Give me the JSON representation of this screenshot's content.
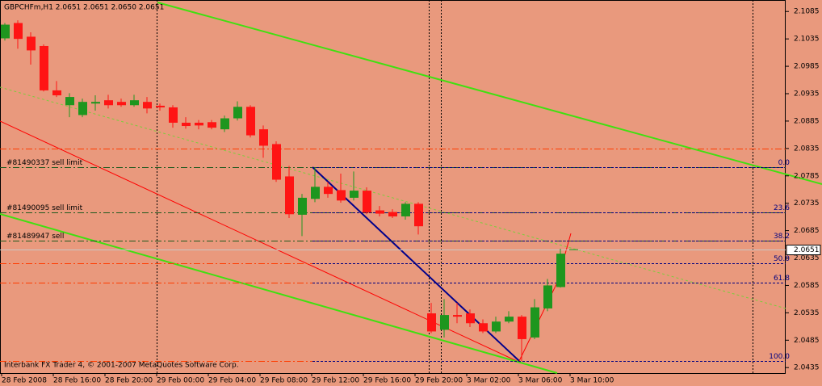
{
  "chart_data": {
    "type": "candlestick",
    "title": "GBPCHFm,H1 2.0651 2.0651 2.0650 2.0651",
    "footer": "Interbank FX Trader 4, © 2001-2007 MetaQuotes Software Corp.",
    "categories": [
      "28 Feb 2008",
      null,
      null,
      null,
      "28 Feb 16:00",
      null,
      null,
      null,
      "28 Feb 20:00",
      null,
      null,
      null,
      "29 Feb 00:00",
      null,
      null,
      null,
      "29 Feb 04:00",
      null,
      null,
      null,
      "29 Feb 08:00",
      null,
      null,
      null,
      "29 Feb 12:00",
      null,
      null,
      null,
      "29 Feb 16:00",
      null,
      null,
      null,
      "29 Feb 20:00",
      null,
      null,
      null,
      "3 Mar 02:00",
      null,
      null,
      null,
      "3 Mar 06:00",
      null,
      null,
      null,
      "3 Mar 10:00"
    ],
    "open": [
      2.1036,
      2.1064,
      2.1039,
      2.1022,
      2.0941,
      2.0914,
      2.0896,
      2.0917,
      2.0923,
      2.092,
      2.0914,
      2.092,
      2.0913,
      2.091,
      2.0882,
      2.0882,
      2.0883,
      2.087,
      2.089,
      2.0911,
      2.087,
      2.0843,
      2.0784,
      2.0714,
      2.0743,
      2.0765,
      2.0759,
      2.0745,
      2.0758,
      2.0722,
      2.0719,
      2.0711,
      2.0734,
      2.0534,
      2.0504,
      2.0531,
      2.0534,
      2.0516,
      2.0501,
      2.0519,
      2.0528,
      2.049,
      2.0543,
      2.0582,
      2.0651
    ],
    "high": [
      2.1064,
      2.1069,
      2.1047,
      2.1025,
      2.0958,
      2.0936,
      2.0926,
      2.0932,
      2.0933,
      2.0926,
      2.0933,
      2.0929,
      2.0917,
      2.0914,
      2.0892,
      2.0887,
      2.0887,
      2.0895,
      2.0921,
      2.0914,
      2.0877,
      2.0848,
      2.0803,
      2.0752,
      2.0801,
      2.0774,
      2.0789,
      2.0793,
      2.0764,
      2.073,
      2.0724,
      2.0737,
      2.0737,
      2.0553,
      2.056,
      2.0553,
      2.0541,
      2.0523,
      2.0528,
      2.0538,
      2.0531,
      2.056,
      2.0597,
      2.0652,
      2.0651
    ],
    "low": [
      2.1032,
      2.1017,
      2.0988,
      2.0939,
      2.0929,
      2.0892,
      2.0892,
      2.0904,
      2.0908,
      2.0911,
      2.0911,
      2.0899,
      2.0904,
      2.0873,
      2.0871,
      2.087,
      2.087,
      2.0865,
      2.0886,
      2.0855,
      2.0818,
      2.0774,
      2.0708,
      2.0675,
      2.0737,
      2.0745,
      2.0736,
      2.074,
      2.0715,
      2.0711,
      2.0708,
      2.0705,
      2.0678,
      2.0498,
      2.049,
      2.0516,
      2.0509,
      2.0498,
      2.0498,
      2.0516,
      2.0447,
      2.0487,
      2.0538,
      2.0581,
      2.065
    ],
    "close": [
      2.1061,
      2.1035,
      2.1014,
      2.0941,
      2.0932,
      2.0929,
      2.092,
      2.092,
      2.0914,
      2.0914,
      2.0923,
      2.0908,
      2.091,
      2.0882,
      2.0876,
      2.0877,
      2.0873,
      2.089,
      2.0911,
      2.0859,
      2.084,
      2.0778,
      2.0715,
      2.0745,
      2.0765,
      2.0752,
      2.074,
      2.0758,
      2.0718,
      2.0716,
      2.0711,
      2.0734,
      2.0693,
      2.0501,
      2.0531,
      2.0528,
      2.0516,
      2.0501,
      2.0519,
      2.0528,
      2.0487,
      2.0545,
      2.0585,
      2.0643,
      2.0651
    ],
    "up_color": "#1e961e",
    "down_color": "#ff1414",
    "current_price": 2.0651,
    "ylim": [
      2.0425,
      2.1106
    ],
    "yticks": [
      2.1085,
      2.1035,
      2.0985,
      2.0935,
      2.0885,
      2.0835,
      2.0785,
      2.0735,
      2.0685,
      2.0635,
      2.0585,
      2.0535,
      2.0485,
      2.0435
    ],
    "orders": [
      {
        "label": "#81490337 sell limit",
        "price": 2.0801
      },
      {
        "label": "#81490095 sell limit",
        "price": 2.0718
      },
      {
        "label": "#81489947 sell",
        "price": 2.0667
      }
    ],
    "fibo_levels": [
      {
        "label": "0.0",
        "price": 2.0801
      },
      {
        "label": "23.6",
        "price": 2.0718
      },
      {
        "label": "38.2",
        "price": 2.0667
      },
      {
        "label": "50.0",
        "price": 2.0625
      },
      {
        "label": "61.8",
        "price": 2.059
      },
      {
        "label": "100.0",
        "price": 2.0447
      }
    ]
  }
}
